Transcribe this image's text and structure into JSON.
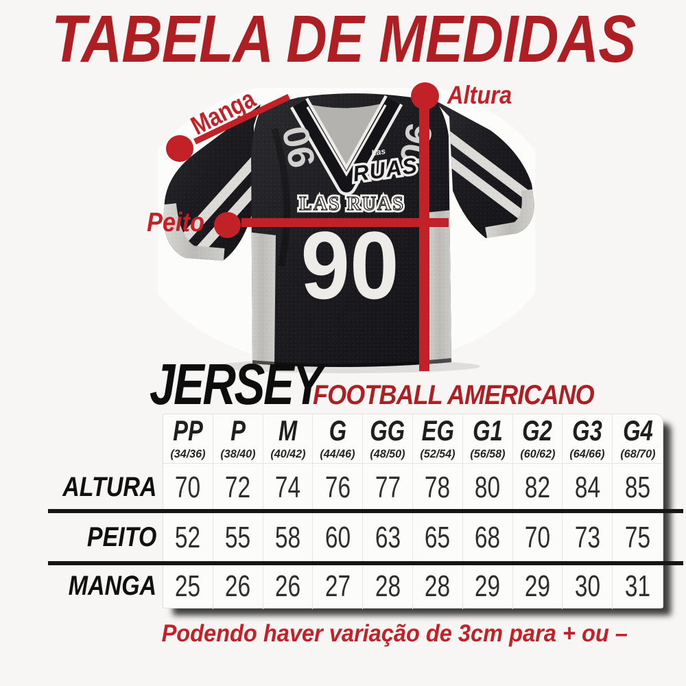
{
  "title": "TABELA DE MEDIDAS",
  "jersey_photo": {
    "number": "90",
    "chest_text": "LAS RUAS",
    "logo_text": "RUAS",
    "logo_small_text": "Las",
    "measure_labels": {
      "manga": "Manga",
      "altura": "Altura",
      "peito": "Peito"
    }
  },
  "heading": {
    "product": "JERSEY",
    "category": "FOOTBALL AMERICANO"
  },
  "chart_data": {
    "type": "table",
    "title": "TABELA DE MEDIDAS",
    "subtitle": "JERSEY FOOTBALL AMERICANO",
    "columns": [
      {
        "size": "PP",
        "range": "(34/36)"
      },
      {
        "size": "P",
        "range": "(38/40)"
      },
      {
        "size": "M",
        "range": "(40/42)"
      },
      {
        "size": "G",
        "range": "(44/46)"
      },
      {
        "size": "GG",
        "range": "(48/50)"
      },
      {
        "size": "EG",
        "range": "(52/54)"
      },
      {
        "size": "G1",
        "range": "(56/58)"
      },
      {
        "size": "G2",
        "range": "(60/62)"
      },
      {
        "size": "G3",
        "range": "(64/66)"
      },
      {
        "size": "G4",
        "range": "(68/70)"
      }
    ],
    "rows": [
      {
        "label": "ALTURA",
        "values": [
          70,
          72,
          74,
          76,
          77,
          78,
          80,
          82,
          84,
          85
        ]
      },
      {
        "label": "PEITO",
        "values": [
          52,
          55,
          58,
          60,
          63,
          65,
          68,
          70,
          73,
          75
        ]
      },
      {
        "label": "MANGA",
        "values": [
          25,
          26,
          26,
          27,
          28,
          28,
          29,
          29,
          30,
          31
        ]
      }
    ]
  },
  "footnote": "Podendo haver variação de 3cm para + ou –",
  "colors": {
    "title_red": "#ae1f24",
    "accent_red": "#c22128",
    "rule_black": "#151515",
    "jersey_black": "#1c1b1f",
    "jersey_silver": "#c9c8c5"
  }
}
